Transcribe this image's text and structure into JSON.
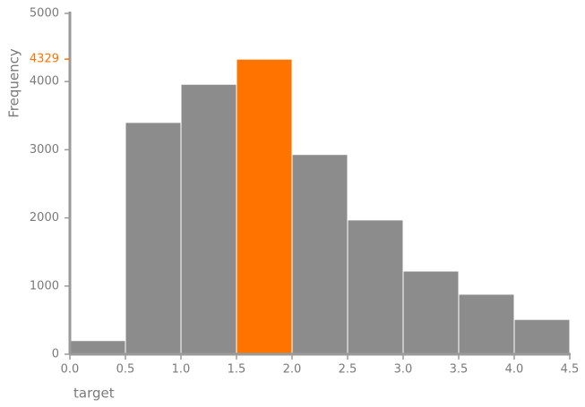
{
  "chart_data": {
    "type": "histogram",
    "x_label": "target",
    "y_label": "Frequency",
    "bins": [
      0,
      0.5,
      1,
      1.5,
      2,
      2.5,
      3,
      3.5,
      4,
      4.5
    ],
    "values": [
      200,
      3400,
      3960,
      4329,
      2930,
      1970,
      1220,
      880,
      510
    ],
    "color": "#8c8c8c",
    "highlight_index": 3,
    "highlight_color": "#ff7400",
    "xlim": [
      0,
      4.5
    ],
    "xticks": [
      {
        "value": 0,
        "label": "0.0"
      },
      {
        "value": 0.5,
        "label": "0.5"
      },
      {
        "value": 1,
        "label": "1.0"
      },
      {
        "value": 1.5,
        "label": "1.5"
      },
      {
        "value": 2,
        "label": "2.0"
      },
      {
        "value": 2.5,
        "label": "2.5"
      },
      {
        "value": 3,
        "label": "3.0"
      },
      {
        "value": 3.5,
        "label": "3.5"
      },
      {
        "value": 4,
        "label": "4.0"
      },
      {
        "value": 4.5,
        "label": "4.5"
      }
    ],
    "ylim": [
      0,
      5000
    ],
    "yticks": [
      0,
      1000,
      2000,
      3000,
      4000,
      5000
    ]
  }
}
